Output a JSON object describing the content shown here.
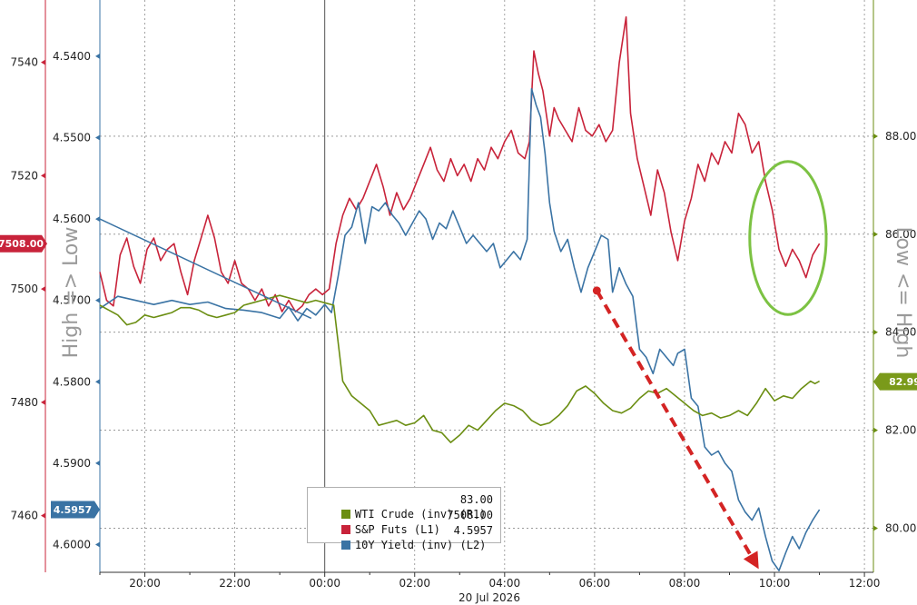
{
  "colors": {
    "wti": "#6b8e12",
    "spx": "#c8233a",
    "yield": "#3a73a4",
    "arrow": "#d42424",
    "circle": "#7cc243",
    "grid": "#8c8c8c",
    "sideLabel": "#9a9a9a",
    "left1Axis": "#c8233a",
    "left2Axis": "#3a73a4",
    "rightAxis": "#6b8e12"
  },
  "chart_data": {
    "type": "line",
    "date_label": "20 Jul 2026",
    "x_axis": {
      "ticks": [
        "20:00",
        "22:00",
        "00:00",
        "02:00",
        "04:00",
        "06:00",
        "08:00",
        "10:00",
        "12:00"
      ],
      "range_hours": [
        -5.0,
        12.2
      ]
    },
    "axes": {
      "L1": {
        "name": "S&P Futs",
        "range": [
          7450,
          7551
        ],
        "ticks": [
          "7540",
          "7520",
          "7500",
          "7480",
          "7460"
        ]
      },
      "L2": {
        "name": "10Y Yield (inv)",
        "range": [
          4.6034,
          4.5331
        ],
        "inverted": true,
        "ticks": [
          "4.5400",
          "4.5500",
          "4.5600",
          "4.5700",
          "4.5800",
          "4.5900",
          "4.6000"
        ]
      },
      "R1": {
        "name": "WTI Crude (inv)",
        "range": [
          79.1,
          90.78
        ],
        "inverted": true,
        "ticks": [
          "80.00",
          "82.00",
          "84.00",
          "86.00",
          "88.00"
        ]
      }
    },
    "current_badges": {
      "L1": "7508.00",
      "L2": "4.5957",
      "R1": "82.99"
    },
    "side_labels": {
      "left": "High => Low",
      "right": "Low <= High"
    },
    "legend": [
      {
        "key": "wti",
        "label": "WTI Crude (inv) (R1)",
        "value": "83.00"
      },
      {
        "key": "spx",
        "label": "S&P Futs (L1)",
        "value": "7508.00"
      },
      {
        "key": "yield",
        "label": "10Y Yield (inv) (L2)",
        "value": "4.5957"
      }
    ],
    "series": [
      {
        "name": "S&P Futs",
        "axis": "L1",
        "points": [
          [
            -5.0,
            7503
          ],
          [
            -4.85,
            7498
          ],
          [
            -4.7,
            7497
          ],
          [
            -4.55,
            7506
          ],
          [
            -4.4,
            7509
          ],
          [
            -4.25,
            7504
          ],
          [
            -4.1,
            7501
          ],
          [
            -3.95,
            7507
          ],
          [
            -3.8,
            7509
          ],
          [
            -3.65,
            7505
          ],
          [
            -3.5,
            7507
          ],
          [
            -3.35,
            7508
          ],
          [
            -3.2,
            7503
          ],
          [
            -3.05,
            7499
          ],
          [
            -2.9,
            7505
          ],
          [
            -2.75,
            7509
          ],
          [
            -2.6,
            7513
          ],
          [
            -2.45,
            7509
          ],
          [
            -2.3,
            7503
          ],
          [
            -2.15,
            7501
          ],
          [
            -2.0,
            7505
          ],
          [
            -1.85,
            7501
          ],
          [
            -1.7,
            7500
          ],
          [
            -1.55,
            7498
          ],
          [
            -1.4,
            7500
          ],
          [
            -1.25,
            7497
          ],
          [
            -1.1,
            7499
          ],
          [
            -0.95,
            7496
          ],
          [
            -0.8,
            7498
          ],
          [
            -0.65,
            7496
          ],
          [
            -0.5,
            7497
          ],
          [
            -0.35,
            7499
          ],
          [
            -0.2,
            7500
          ],
          [
            -0.05,
            7499
          ],
          [
            0.1,
            7500
          ],
          [
            0.25,
            7508
          ],
          [
            0.4,
            7513
          ],
          [
            0.55,
            7516
          ],
          [
            0.7,
            7514
          ],
          [
            0.85,
            7516
          ],
          [
            1.0,
            7519
          ],
          [
            1.15,
            7522
          ],
          [
            1.3,
            7518
          ],
          [
            1.45,
            7513
          ],
          [
            1.6,
            7517
          ],
          [
            1.75,
            7514
          ],
          [
            1.9,
            7516
          ],
          [
            2.05,
            7519
          ],
          [
            2.2,
            7522
          ],
          [
            2.35,
            7525
          ],
          [
            2.5,
            7521
          ],
          [
            2.65,
            7519
          ],
          [
            2.8,
            7523
          ],
          [
            2.95,
            7520
          ],
          [
            3.1,
            7522
          ],
          [
            3.25,
            7519
          ],
          [
            3.4,
            7523
          ],
          [
            3.55,
            7521
          ],
          [
            3.7,
            7525
          ],
          [
            3.85,
            7523
          ],
          [
            4.0,
            7526
          ],
          [
            4.15,
            7528
          ],
          [
            4.3,
            7524
          ],
          [
            4.45,
            7523
          ],
          [
            4.55,
            7526
          ],
          [
            4.65,
            7542
          ],
          [
            4.75,
            7538
          ],
          [
            4.85,
            7535
          ],
          [
            5.0,
            7527
          ],
          [
            5.1,
            7532
          ],
          [
            5.2,
            7530
          ],
          [
            5.35,
            7528
          ],
          [
            5.5,
            7526
          ],
          [
            5.65,
            7532
          ],
          [
            5.8,
            7528
          ],
          [
            5.95,
            7527
          ],
          [
            6.1,
            7529
          ],
          [
            6.25,
            7526
          ],
          [
            6.4,
            7528
          ],
          [
            6.55,
            7540
          ],
          [
            6.7,
            7548
          ],
          [
            6.8,
            7531
          ],
          [
            6.95,
            7523
          ],
          [
            7.1,
            7518
          ],
          [
            7.25,
            7513
          ],
          [
            7.4,
            7521
          ],
          [
            7.55,
            7517
          ],
          [
            7.7,
            7510
          ],
          [
            7.85,
            7505
          ],
          [
            8.0,
            7512
          ],
          [
            8.15,
            7516
          ],
          [
            8.3,
            7522
          ],
          [
            8.45,
            7519
          ],
          [
            8.6,
            7524
          ],
          [
            8.75,
            7522
          ],
          [
            8.9,
            7526
          ],
          [
            9.05,
            7524
          ],
          [
            9.2,
            7531
          ],
          [
            9.35,
            7529
          ],
          [
            9.5,
            7524
          ],
          [
            9.65,
            7526
          ],
          [
            9.8,
            7519
          ],
          [
            9.95,
            7514
          ],
          [
            10.1,
            7507
          ],
          [
            10.25,
            7504
          ],
          [
            10.4,
            7507
          ],
          [
            10.55,
            7505
          ],
          [
            10.7,
            7502
          ],
          [
            10.85,
            7506
          ],
          [
            11.0,
            7508
          ]
        ]
      },
      {
        "name": "10Y Yield (inv)",
        "axis": "L2",
        "points": [
          [
            -5.0,
            4.571
          ],
          [
            -4.6,
            4.5695
          ],
          [
            -4.2,
            4.57
          ],
          [
            -3.8,
            4.5705
          ],
          [
            -3.4,
            4.57
          ],
          [
            -3.0,
            4.5705
          ],
          [
            -2.6,
            4.5702
          ],
          [
            -2.2,
            4.571
          ],
          [
            -1.8,
            4.5712
          ],
          [
            -1.4,
            4.5715
          ],
          [
            -1.0,
            4.5722
          ],
          [
            -0.8,
            4.5708
          ],
          [
            -0.6,
            4.5725
          ],
          [
            -0.4,
            4.571
          ],
          [
            -0.2,
            4.5718
          ],
          [
            0.0,
            4.5705
          ],
          [
            0.15,
            4.5715
          ],
          [
            0.3,
            4.567
          ],
          [
            0.45,
            4.562
          ],
          [
            0.6,
            4.561
          ],
          [
            0.75,
            4.558
          ],
          [
            0.9,
            4.563
          ],
          [
            1.05,
            4.5585
          ],
          [
            1.2,
            4.559
          ],
          [
            1.35,
            4.558
          ],
          [
            1.5,
            4.5595
          ],
          [
            1.65,
            4.5605
          ],
          [
            1.8,
            4.562
          ],
          [
            1.95,
            4.5605
          ],
          [
            2.1,
            4.559
          ],
          [
            2.25,
            4.56
          ],
          [
            2.4,
            4.5625
          ],
          [
            2.55,
            4.5605
          ],
          [
            2.7,
            4.5612
          ],
          [
            2.85,
            4.559
          ],
          [
            3.0,
            4.561
          ],
          [
            3.15,
            4.563
          ],
          [
            3.3,
            4.562
          ],
          [
            3.45,
            4.563
          ],
          [
            3.6,
            4.564
          ],
          [
            3.75,
            4.563
          ],
          [
            3.9,
            4.566
          ],
          [
            4.05,
            4.565
          ],
          [
            4.2,
            4.564
          ],
          [
            4.35,
            4.565
          ],
          [
            4.5,
            4.5625
          ],
          [
            4.6,
            4.544
          ],
          [
            4.7,
            4.546
          ],
          [
            4.8,
            4.5475
          ],
          [
            4.9,
            4.552
          ],
          [
            5.0,
            4.558
          ],
          [
            5.1,
            4.5615
          ],
          [
            5.25,
            4.564
          ],
          [
            5.4,
            4.5625
          ],
          [
            5.55,
            4.566
          ],
          [
            5.7,
            4.569
          ],
          [
            5.85,
            4.566
          ],
          [
            6.0,
            4.564
          ],
          [
            6.15,
            4.562
          ],
          [
            6.3,
            4.5625
          ],
          [
            6.4,
            4.569
          ],
          [
            6.55,
            4.566
          ],
          [
            6.7,
            4.568
          ],
          [
            6.85,
            4.5695
          ],
          [
            7.0,
            4.576
          ],
          [
            7.15,
            4.577
          ],
          [
            7.3,
            4.579
          ],
          [
            7.45,
            4.576
          ],
          [
            7.6,
            4.577
          ],
          [
            7.75,
            4.578
          ],
          [
            7.85,
            4.5765
          ],
          [
            8.0,
            4.576
          ],
          [
            8.15,
            4.582
          ],
          [
            8.3,
            4.583
          ],
          [
            8.45,
            4.588
          ],
          [
            8.6,
            4.589
          ],
          [
            8.75,
            4.5885
          ],
          [
            8.9,
            4.59
          ],
          [
            9.05,
            4.591
          ],
          [
            9.2,
            4.5945
          ],
          [
            9.35,
            4.596
          ],
          [
            9.5,
            4.597
          ],
          [
            9.65,
            4.5955
          ],
          [
            9.8,
            4.599
          ],
          [
            9.95,
            4.602
          ],
          [
            10.1,
            4.6032
          ],
          [
            10.25,
            4.601
          ],
          [
            10.4,
            4.599
          ],
          [
            10.55,
            4.6005
          ],
          [
            10.7,
            4.5985
          ],
          [
            10.85,
            4.597
          ],
          [
            11.0,
            4.5957
          ]
        ]
      },
      {
        "name": "WTI Crude (inv)",
        "axis": "R1",
        "points": [
          [
            -5.0,
            84.55
          ],
          [
            -4.8,
            84.45
          ],
          [
            -4.6,
            84.35
          ],
          [
            -4.4,
            84.15
          ],
          [
            -4.2,
            84.2
          ],
          [
            -4.0,
            84.35
          ],
          [
            -3.8,
            84.3
          ],
          [
            -3.6,
            84.35
          ],
          [
            -3.4,
            84.4
          ],
          [
            -3.2,
            84.5
          ],
          [
            -3.0,
            84.5
          ],
          [
            -2.8,
            84.45
          ],
          [
            -2.6,
            84.35
          ],
          [
            -2.4,
            84.3
          ],
          [
            -2.2,
            84.35
          ],
          [
            -2.0,
            84.4
          ],
          [
            -1.8,
            84.55
          ],
          [
            -1.6,
            84.6
          ],
          [
            -1.4,
            84.65
          ],
          [
            -1.2,
            84.7
          ],
          [
            -1.0,
            84.75
          ],
          [
            -0.8,
            84.7
          ],
          [
            -0.6,
            84.65
          ],
          [
            -0.4,
            84.6
          ],
          [
            -0.2,
            84.65
          ],
          [
            0.0,
            84.6
          ],
          [
            0.2,
            84.55
          ],
          [
            0.4,
            83.0
          ],
          [
            0.6,
            82.7
          ],
          [
            0.8,
            82.55
          ],
          [
            1.0,
            82.4
          ],
          [
            1.2,
            82.1
          ],
          [
            1.4,
            82.15
          ],
          [
            1.6,
            82.2
          ],
          [
            1.8,
            82.1
          ],
          [
            2.0,
            82.15
          ],
          [
            2.2,
            82.3
          ],
          [
            2.4,
            82.0
          ],
          [
            2.6,
            81.95
          ],
          [
            2.8,
            81.75
          ],
          [
            3.0,
            81.9
          ],
          [
            3.2,
            82.1
          ],
          [
            3.4,
            82.0
          ],
          [
            3.6,
            82.2
          ],
          [
            3.8,
            82.4
          ],
          [
            4.0,
            82.55
          ],
          [
            4.2,
            82.5
          ],
          [
            4.4,
            82.4
          ],
          [
            4.6,
            82.2
          ],
          [
            4.8,
            82.1
          ],
          [
            5.0,
            82.15
          ],
          [
            5.2,
            82.3
          ],
          [
            5.4,
            82.5
          ],
          [
            5.6,
            82.8
          ],
          [
            5.8,
            82.9
          ],
          [
            6.0,
            82.75
          ],
          [
            6.2,
            82.55
          ],
          [
            6.4,
            82.4
          ],
          [
            6.6,
            82.35
          ],
          [
            6.8,
            82.45
          ],
          [
            7.0,
            82.65
          ],
          [
            7.2,
            82.8
          ],
          [
            7.4,
            82.75
          ],
          [
            7.6,
            82.85
          ],
          [
            7.8,
            82.7
          ],
          [
            8.0,
            82.55
          ],
          [
            8.2,
            82.4
          ],
          [
            8.4,
            82.3
          ],
          [
            8.6,
            82.35
          ],
          [
            8.8,
            82.25
          ],
          [
            9.0,
            82.3
          ],
          [
            9.2,
            82.4
          ],
          [
            9.4,
            82.3
          ],
          [
            9.6,
            82.55
          ],
          [
            9.8,
            82.85
          ],
          [
            10.0,
            82.6
          ],
          [
            10.2,
            82.7
          ],
          [
            10.4,
            82.65
          ],
          [
            10.6,
            82.85
          ],
          [
            10.8,
            83.0
          ],
          [
            10.9,
            82.95
          ],
          [
            11.0,
            83.0
          ]
        ]
      }
    ],
    "trend_line": {
      "from": [
        -5.0,
        4.56
      ],
      "to": [
        -0.3,
        4.5722
      ],
      "axis": "L2"
    },
    "arrow": {
      "from": [
        6.05,
        4.5688
      ],
      "to": [
        9.65,
        4.603
      ],
      "axis": "L2"
    },
    "circle": {
      "center": [
        10.3,
        7509
      ],
      "radius_hours": 0.85,
      "radius_L1": 13.5
    }
  }
}
